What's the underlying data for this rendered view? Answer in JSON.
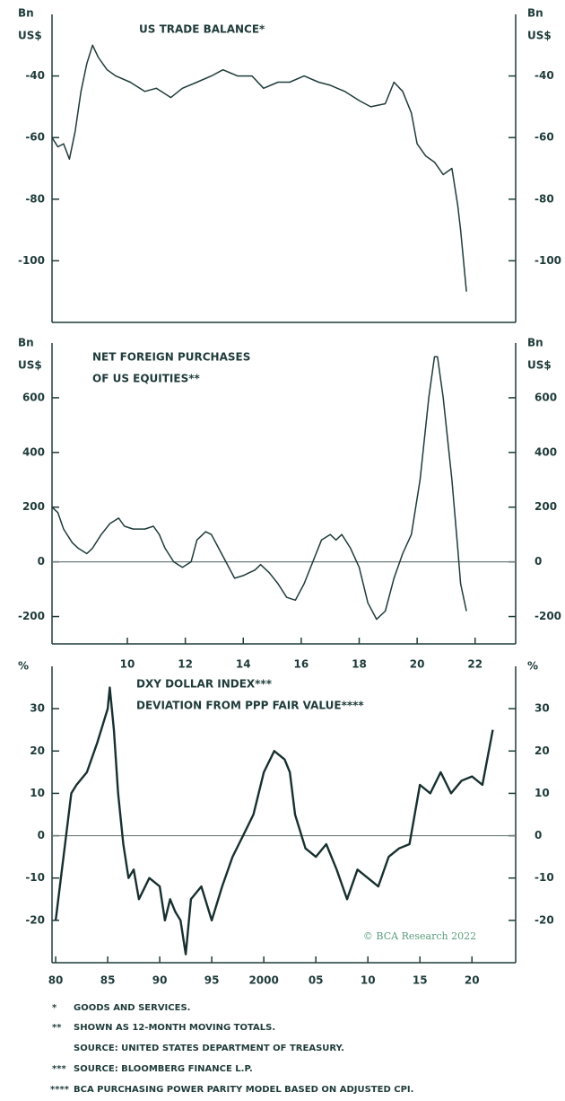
{
  "chart_data": [
    {
      "type": "line",
      "title": [
        "US TRADE BALANCE*"
      ],
      "y_label": [
        "Bn",
        "US$"
      ],
      "color": "#1f3b3a",
      "x": [
        2007.4,
        2007.6,
        2007.8,
        2008.0,
        2008.2,
        2008.4,
        2008.6,
        2008.8,
        2009.0,
        2009.3,
        2009.6,
        2010.1,
        2010.6,
        2011.0,
        2011.5,
        2011.9,
        2012.4,
        2012.9,
        2013.3,
        2013.8,
        2014.3,
        2014.7,
        2015.2,
        2015.6,
        2016.1,
        2016.6,
        2017.0,
        2017.5,
        2018.0,
        2018.4,
        2018.9,
        2019.2,
        2019.5,
        2019.8,
        2020.0,
        2020.3,
        2020.6,
        2020.9,
        2021.2,
        2021.4,
        2021.5,
        2021.7
      ],
      "values": [
        -60,
        -63,
        -62,
        -67,
        -58,
        -45,
        -36,
        -30,
        -34,
        -38,
        -40,
        -42,
        -45,
        -44,
        -47,
        -44,
        -42,
        -40,
        -38,
        -40,
        -40,
        -44,
        -42,
        -42,
        -40,
        -42,
        -43,
        -45,
        -48,
        -50,
        -49,
        -42,
        -45,
        -52,
        -62,
        -66,
        -68,
        -72,
        -70,
        -82,
        -90,
        -110
      ],
      "xlim": [
        2007.4,
        2023.4
      ],
      "ylim": [
        -120,
        -20
      ],
      "yticks": [
        -40,
        -60,
        -80,
        -100
      ]
    },
    {
      "type": "line",
      "title": [
        "NET FOREIGN PURCHASES",
        "OF US EQUITIES**"
      ],
      "y_label": [
        "Bn",
        "US$"
      ],
      "color": "#1f3b3a",
      "zero_line": true,
      "x": [
        2007.4,
        2007.6,
        2007.8,
        2008.1,
        2008.3,
        2008.6,
        2008.8,
        2009.1,
        2009.4,
        2009.7,
        2009.9,
        2010.2,
        2010.6,
        2010.9,
        2011.1,
        2011.3,
        2011.6,
        2011.9,
        2012.2,
        2012.4,
        2012.7,
        2012.9,
        2013.1,
        2013.4,
        2013.7,
        2014.0,
        2014.2,
        2014.4,
        2014.6,
        2014.9,
        2015.2,
        2015.5,
        2015.8,
        2016.1,
        2016.4,
        2016.7,
        2017.0,
        2017.2,
        2017.4,
        2017.7,
        2018.0,
        2018.3,
        2018.6,
        2018.9,
        2019.2,
        2019.5,
        2019.8,
        2020.1,
        2020.4,
        2020.6,
        2020.7,
        2020.9,
        2021.2,
        2021.4,
        2021.5,
        2021.7
      ],
      "values": [
        200,
        180,
        120,
        70,
        50,
        30,
        50,
        100,
        140,
        160,
        130,
        120,
        120,
        130,
        100,
        50,
        0,
        -20,
        0,
        80,
        110,
        100,
        60,
        0,
        -60,
        -50,
        -40,
        -30,
        -10,
        -40,
        -80,
        -130,
        -140,
        -80,
        0,
        80,
        100,
        80,
        100,
        50,
        -20,
        -150,
        -210,
        -180,
        -60,
        30,
        100,
        300,
        600,
        750,
        750,
        600,
        300,
        50,
        -80,
        -180
      ],
      "xlim": [
        2007.4,
        2023.4
      ],
      "ylim": [
        -300,
        800
      ],
      "yticks": [
        600,
        400,
        200,
        0,
        -200
      ],
      "xticks": [
        {
          "value": 2010,
          "label": "10"
        },
        {
          "value": 2012,
          "label": "12"
        },
        {
          "value": 2014,
          "label": "14"
        },
        {
          "value": 2016,
          "label": "16"
        },
        {
          "value": 2018,
          "label": "18"
        },
        {
          "value": 2020,
          "label": "20"
        },
        {
          "value": 2022,
          "label": "22"
        }
      ]
    },
    {
      "type": "line",
      "title": [
        "DXY DOLLAR INDEX***",
        "DEVIATION FROM PPP FAIR VALUE****"
      ],
      "y_label": [
        "%"
      ],
      "color": "#17302f",
      "zero_line": true,
      "x": [
        1980,
        1980.5,
        1981,
        1981.5,
        1982,
        1983,
        1984,
        1985,
        1985.2,
        1985.6,
        1986,
        1986.5,
        1987,
        1987.5,
        1988,
        1989,
        1990,
        1990.5,
        1991,
        1991.5,
        1992,
        1992.5,
        1993,
        1994,
        1995,
        1996,
        1997,
        1998,
        1999,
        2000,
        2001,
        2002,
        2002.5,
        2003,
        2004,
        2005,
        2006,
        2007,
        2008,
        2009,
        2010,
        2011,
        2012,
        2013,
        2014,
        2015,
        2016,
        2017,
        2018,
        2019,
        2020,
        2021,
        2022
      ],
      "values": [
        -20,
        -10,
        0,
        10,
        12,
        15,
        22,
        30,
        35,
        25,
        10,
        -2,
        -10,
        -8,
        -15,
        -10,
        -12,
        -20,
        -15,
        -18,
        -20,
        -28,
        -15,
        -12,
        -20,
        -12,
        -5,
        0,
        5,
        15,
        20,
        18,
        15,
        5,
        -3,
        -5,
        -2,
        -8,
        -15,
        -8,
        -10,
        -12,
        -5,
        -3,
        -2,
        12,
        10,
        15,
        10,
        13,
        14,
        12,
        25
      ],
      "xlim": [
        1979.65,
        2024.2
      ],
      "ylim": [
        -30,
        40
      ],
      "yticks": [
        30,
        20,
        10,
        0,
        -10,
        -20
      ],
      "xticks": [
        {
          "value": 1980,
          "label": "80"
        },
        {
          "value": 1985,
          "label": "85"
        },
        {
          "value": 1990,
          "label": "90"
        },
        {
          "value": 1995,
          "label": "95"
        },
        2000,
        {
          "value": 2005,
          "label": "05"
        },
        {
          "value": 2010,
          "label": "10"
        },
        {
          "value": 2015,
          "label": "15"
        },
        {
          "value": 2020,
          "label": "20"
        }
      ],
      "annotation": "© BCA Research 2022"
    }
  ],
  "footnotes": [
    {
      "marker": "*",
      "text": "GOODS AND SERVICES."
    },
    {
      "marker": "**",
      "text": "SHOWN AS 12-MONTH MOVING TOTALS."
    },
    {
      "text": "SOURCE: UNITED STATES DEPARTMENT OF TREASURY."
    },
    {
      "marker": "***",
      "text": "SOURCE: BLOOMBERG FINANCE L.P."
    },
    {
      "marker": "****",
      "text": "BCA PURCHASING POWER PARITY MODEL BASED ON ADJUSTED CPI."
    }
  ]
}
